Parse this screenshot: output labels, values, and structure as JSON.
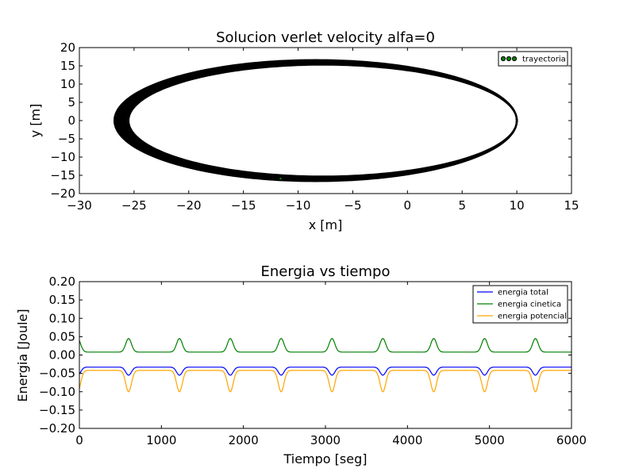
{
  "chart_data": [
    {
      "type": "scatter",
      "title": "Solucion verlet velocity alfa=0",
      "xlabel": "x [m]",
      "ylabel": "y [m]",
      "xlim": [
        -30,
        15
      ],
      "ylim": [
        -20,
        20
      ],
      "xticks": [
        -30,
        -25,
        -20,
        -15,
        -10,
        -5,
        0,
        5,
        10,
        15
      ],
      "yticks": [
        -20,
        -15,
        -10,
        -5,
        0,
        5,
        10,
        15,
        20
      ],
      "xtick_labels": [
        "−30",
        "−25",
        "−20",
        "−15",
        "−10",
        "−5",
        "0",
        "5",
        "10",
        "15"
      ],
      "ytick_labels": [
        "−20",
        "−15",
        "−10",
        "−5",
        "0",
        "5",
        "10",
        "15",
        "20"
      ],
      "legend_position": "top-right",
      "series": [
        {
          "name": "trayectoria",
          "color": "#000000",
          "orbit": {
            "x_max": 10.0,
            "x_min_inner": -25.5,
            "x_min_outer": -26.8,
            "y_max_inner": 15.3,
            "y_max_outer": 16.6
          }
        }
      ],
      "marker_color": "#008000"
    },
    {
      "type": "line",
      "title": "Energia vs tiempo",
      "xlabel": "Tiempo [seg]",
      "ylabel": "Energia [Joule]",
      "xlim": [
        0,
        6000
      ],
      "ylim": [
        -0.2,
        0.2
      ],
      "xticks": [
        0,
        1000,
        2000,
        3000,
        4000,
        5000,
        6000
      ],
      "yticks": [
        -0.2,
        -0.15,
        -0.1,
        -0.05,
        0.0,
        0.05,
        0.1,
        0.15,
        0.2
      ],
      "xtick_labels": [
        "0",
        "1000",
        "2000",
        "3000",
        "4000",
        "5000",
        "6000"
      ],
      "ytick_labels": [
        "−0.20",
        "−0.15",
        "−0.10",
        "−0.05",
        "0.00",
        "0.05",
        "0.10",
        "0.15",
        "0.20"
      ],
      "legend_position": "top-right",
      "period": 620,
      "first_peak": 600,
      "series": [
        {
          "name": "energia total",
          "color": "#0000ff",
          "baseline": -0.033,
          "peak": -0.055
        },
        {
          "name": "energia cinetica",
          "color": "#008000",
          "baseline": 0.008,
          "peak": 0.045
        },
        {
          "name": "energia potencial",
          "color": "#ffa500",
          "baseline": -0.042,
          "peak": -0.1
        }
      ]
    }
  ]
}
